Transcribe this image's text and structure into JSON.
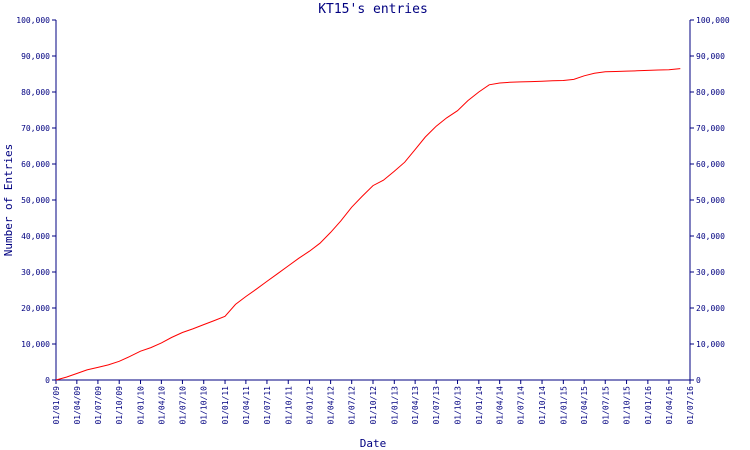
{
  "chart_data": {
    "type": "line",
    "title": "KT15's entries",
    "xlabel": "Date",
    "ylabel": "Number of Entries",
    "x_range": [
      "2009-01-01",
      "2016-07-01"
    ],
    "ylim": [
      0,
      100000
    ],
    "grid": false,
    "legend": "none",
    "colors": {
      "axis": "#000080",
      "series": "#ff0000",
      "background": "#ffffff"
    },
    "x_ticks": [
      {
        "date": "2009-01-01",
        "label": "01/01/09"
      },
      {
        "date": "2009-04-01",
        "label": "01/04/09"
      },
      {
        "date": "2009-07-01",
        "label": "01/07/09"
      },
      {
        "date": "2009-10-01",
        "label": "01/10/09"
      },
      {
        "date": "2010-01-01",
        "label": "01/01/10"
      },
      {
        "date": "2010-04-01",
        "label": "01/04/10"
      },
      {
        "date": "2010-07-01",
        "label": "01/07/10"
      },
      {
        "date": "2010-10-01",
        "label": "01/10/10"
      },
      {
        "date": "2011-01-01",
        "label": "01/01/11"
      },
      {
        "date": "2011-04-01",
        "label": "01/04/11"
      },
      {
        "date": "2011-07-01",
        "label": "01/07/11"
      },
      {
        "date": "2011-10-01",
        "label": "01/10/11"
      },
      {
        "date": "2012-01-01",
        "label": "01/01/12"
      },
      {
        "date": "2012-04-01",
        "label": "01/04/12"
      },
      {
        "date": "2012-07-01",
        "label": "01/07/12"
      },
      {
        "date": "2012-10-01",
        "label": "01/10/12"
      },
      {
        "date": "2013-01-01",
        "label": "01/01/13"
      },
      {
        "date": "2013-04-01",
        "label": "01/04/13"
      },
      {
        "date": "2013-07-01",
        "label": "01/07/13"
      },
      {
        "date": "2013-10-01",
        "label": "01/10/13"
      },
      {
        "date": "2014-01-01",
        "label": "01/01/14"
      },
      {
        "date": "2014-04-01",
        "label": "01/04/14"
      },
      {
        "date": "2014-07-01",
        "label": "01/07/14"
      },
      {
        "date": "2014-10-01",
        "label": "01/10/14"
      },
      {
        "date": "2015-01-01",
        "label": "01/01/15"
      },
      {
        "date": "2015-04-01",
        "label": "01/04/15"
      },
      {
        "date": "2015-07-01",
        "label": "01/07/15"
      },
      {
        "date": "2015-10-01",
        "label": "01/10/15"
      },
      {
        "date": "2016-01-01",
        "label": "01/01/16"
      },
      {
        "date": "2016-04-01",
        "label": "01/04/16"
      },
      {
        "date": "2016-07-01",
        "label": "01/07/16"
      }
    ],
    "y_ticks": [
      {
        "value": 0,
        "label": "0"
      },
      {
        "value": 10000,
        "label": "10,000"
      },
      {
        "value": 20000,
        "label": "20,000"
      },
      {
        "value": 30000,
        "label": "30,000"
      },
      {
        "value": 40000,
        "label": "40,000"
      },
      {
        "value": 50000,
        "label": "50,000"
      },
      {
        "value": 60000,
        "label": "60,000"
      },
      {
        "value": 70000,
        "label": "70,000"
      },
      {
        "value": 80000,
        "label": "80,000"
      },
      {
        "value": 90000,
        "label": "90,000"
      },
      {
        "value": 100000,
        "label": "100,000"
      }
    ],
    "series": [
      {
        "x": [
          "2009-01-01",
          "2009-02-15",
          "2009-04-01",
          "2009-05-15",
          "2009-07-01",
          "2009-08-15",
          "2009-10-01",
          "2009-11-15",
          "2010-01-01",
          "2010-02-15",
          "2010-04-01",
          "2010-05-15",
          "2010-07-01",
          "2010-08-15",
          "2010-10-01",
          "2010-11-15",
          "2011-01-01",
          "2011-02-15",
          "2011-04-01",
          "2011-05-15",
          "2011-07-01",
          "2011-08-15",
          "2011-10-01",
          "2011-11-15",
          "2012-01-01",
          "2012-02-15",
          "2012-04-01",
          "2012-05-15",
          "2012-07-01",
          "2012-08-15",
          "2012-10-01",
          "2012-11-15",
          "2013-01-01",
          "2013-02-15",
          "2013-04-01",
          "2013-05-15",
          "2013-07-01",
          "2013-08-15",
          "2013-10-01",
          "2013-11-15",
          "2014-01-01",
          "2014-02-15",
          "2014-04-01",
          "2014-05-15",
          "2014-07-01",
          "2014-08-15",
          "2014-10-01",
          "2014-11-15",
          "2015-01-01",
          "2015-02-15",
          "2015-04-01",
          "2015-05-15",
          "2015-07-01",
          "2015-08-15",
          "2015-10-01",
          "2015-11-15",
          "2016-01-01",
          "2016-02-15",
          "2016-04-01",
          "2016-05-20"
        ],
        "values": [
          0,
          800,
          1800,
          2800,
          3500,
          4200,
          5200,
          6500,
          8000,
          9000,
          10300,
          11800,
          13200,
          14200,
          15400,
          16500,
          17700,
          21000,
          23200,
          25200,
          27400,
          29500,
          31700,
          33800,
          35800,
          38000,
          41000,
          44200,
          48000,
          51000,
          54000,
          55500,
          58000,
          60500,
          64000,
          67500,
          70500,
          72800,
          74800,
          77600,
          80000,
          82000,
          82500,
          82700,
          82800,
          82900,
          83000,
          83100,
          83200,
          83500,
          84500,
          85200,
          85600,
          85700,
          85800,
          85900,
          86000,
          86100,
          86200,
          86500
        ]
      }
    ]
  }
}
